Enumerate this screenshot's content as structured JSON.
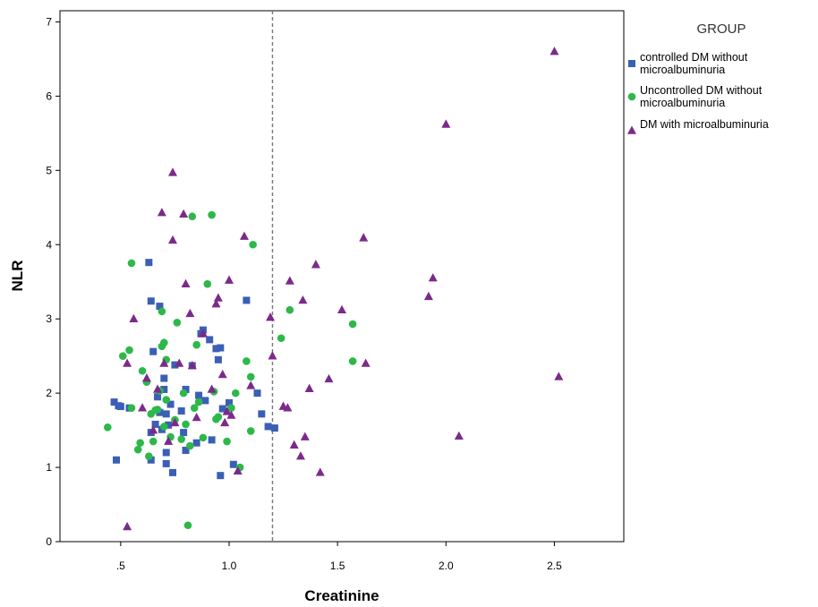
{
  "chart_data": {
    "type": "scatter",
    "xlabel": "Creatinine",
    "ylabel": "NLR",
    "xlim": [
      0.22,
      2.82
    ],
    "ylim": [
      0,
      7.15
    ],
    "x_ticks": [
      ".5",
      "1.0",
      "1.5",
      "2.0",
      "2.5"
    ],
    "y_ticks": [
      "0",
      "1",
      "2",
      "3",
      "4",
      "5",
      "6",
      "7"
    ],
    "reference_line": {
      "axis": "x",
      "value": 1.2,
      "style": "dashed"
    },
    "grid": false,
    "legend": {
      "title": "GROUP",
      "position": "right"
    },
    "series": [
      {
        "name": "controlled DM without microalbuminuria",
        "label_lines": [
          "controlled DM without",
          "microalbuminuria"
        ],
        "marker": "square",
        "color": "#3a5fb5",
        "points": [
          [
            0.47,
            1.88
          ],
          [
            0.48,
            1.1
          ],
          [
            0.49,
            1.83
          ],
          [
            0.5,
            1.82
          ],
          [
            0.54,
            1.8
          ],
          [
            0.63,
            3.76
          ],
          [
            0.64,
            3.24
          ],
          [
            0.64,
            1.47
          ],
          [
            0.64,
            1.1
          ],
          [
            0.65,
            2.56
          ],
          [
            0.66,
            1.58
          ],
          [
            0.67,
            1.95
          ],
          [
            0.68,
            3.17
          ],
          [
            0.68,
            1.74
          ],
          [
            0.69,
            1.51
          ],
          [
            0.7,
            2.2
          ],
          [
            0.7,
            2.05
          ],
          [
            0.71,
            1.05
          ],
          [
            0.71,
            1.2
          ],
          [
            0.71,
            1.72
          ],
          [
            0.72,
            1.57
          ],
          [
            0.73,
            1.85
          ],
          [
            0.74,
            0.93
          ],
          [
            0.75,
            2.38
          ],
          [
            0.78,
            1.76
          ],
          [
            0.79,
            1.47
          ],
          [
            0.8,
            1.23
          ],
          [
            0.8,
            2.05
          ],
          [
            0.83,
            2.37
          ],
          [
            0.85,
            1.33
          ],
          [
            0.86,
            1.97
          ],
          [
            0.87,
            2.8
          ],
          [
            0.88,
            2.85
          ],
          [
            0.89,
            1.9
          ],
          [
            0.91,
            2.72
          ],
          [
            0.92,
            1.37
          ],
          [
            0.94,
            2.6
          ],
          [
            0.95,
            2.45
          ],
          [
            0.96,
            2.61
          ],
          [
            0.96,
            0.89
          ],
          [
            0.97,
            1.79
          ],
          [
            1.0,
            1.87
          ],
          [
            1.02,
            1.04
          ],
          [
            1.08,
            3.25
          ],
          [
            1.13,
            2.0
          ],
          [
            1.15,
            1.72
          ],
          [
            1.18,
            1.55
          ],
          [
            1.21,
            1.53
          ]
        ]
      },
      {
        "name": "Uncontrolled DM without microalbuminuria",
        "label_lines": [
          "Uncontrolled DM without",
          "microalbuminuria"
        ],
        "marker": "circle",
        "color": "#2db84a",
        "points": [
          [
            0.44,
            1.54
          ],
          [
            0.51,
            2.5
          ],
          [
            0.54,
            2.58
          ],
          [
            0.55,
            3.75
          ],
          [
            0.55,
            1.8
          ],
          [
            0.58,
            1.24
          ],
          [
            0.59,
            1.33
          ],
          [
            0.6,
            2.3
          ],
          [
            0.62,
            2.15
          ],
          [
            0.63,
            1.15
          ],
          [
            0.64,
            1.72
          ],
          [
            0.65,
            1.35
          ],
          [
            0.66,
            1.77
          ],
          [
            0.67,
            1.78
          ],
          [
            0.68,
            2.03
          ],
          [
            0.69,
            2.63
          ],
          [
            0.69,
            3.1
          ],
          [
            0.7,
            2.68
          ],
          [
            0.7,
            1.55
          ],
          [
            0.71,
            1.91
          ],
          [
            0.71,
            2.45
          ],
          [
            0.73,
            1.41
          ],
          [
            0.75,
            1.64
          ],
          [
            0.76,
            2.95
          ],
          [
            0.78,
            1.38
          ],
          [
            0.79,
            2.0
          ],
          [
            0.8,
            1.58
          ],
          [
            0.81,
            0.22
          ],
          [
            0.82,
            1.29
          ],
          [
            0.83,
            4.38
          ],
          [
            0.84,
            1.8
          ],
          [
            0.85,
            2.65
          ],
          [
            0.86,
            1.88
          ],
          [
            0.88,
            1.4
          ],
          [
            0.9,
            3.47
          ],
          [
            0.92,
            4.4
          ],
          [
            0.93,
            2.02
          ],
          [
            0.94,
            1.65
          ],
          [
            0.95,
            1.68
          ],
          [
            0.99,
            1.35
          ],
          [
            1.01,
            1.8
          ],
          [
            1.03,
            2.0
          ],
          [
            1.05,
            1.0
          ],
          [
            1.08,
            2.43
          ],
          [
            1.1,
            1.49
          ],
          [
            1.1,
            2.22
          ],
          [
            1.11,
            4.0
          ],
          [
            1.24,
            2.74
          ],
          [
            1.28,
            3.12
          ],
          [
            1.57,
            2.93
          ],
          [
            1.57,
            2.43
          ]
        ]
      },
      {
        "name": "DM with microalbuminuria",
        "label_lines": [
          "DM with microalbuminuria"
        ],
        "marker": "triangle",
        "color": "#7b2a8a",
        "points": [
          [
            0.53,
            0.2
          ],
          [
            0.53,
            2.4
          ],
          [
            0.56,
            3.0
          ],
          [
            0.6,
            1.8
          ],
          [
            0.62,
            2.2
          ],
          [
            0.65,
            1.5
          ],
          [
            0.67,
            2.05
          ],
          [
            0.69,
            4.43
          ],
          [
            0.7,
            2.4
          ],
          [
            0.72,
            1.35
          ],
          [
            0.74,
            4.97
          ],
          [
            0.74,
            4.06
          ],
          [
            0.75,
            1.6
          ],
          [
            0.77,
            2.4
          ],
          [
            0.79,
            4.41
          ],
          [
            0.8,
            3.47
          ],
          [
            0.82,
            3.07
          ],
          [
            0.83,
            2.37
          ],
          [
            0.85,
            1.67
          ],
          [
            0.88,
            2.8
          ],
          [
            0.92,
            2.05
          ],
          [
            0.94,
            3.2
          ],
          [
            0.95,
            3.28
          ],
          [
            0.97,
            2.25
          ],
          [
            0.98,
            1.6
          ],
          [
            0.99,
            1.75
          ],
          [
            1.0,
            3.52
          ],
          [
            1.01,
            1.7
          ],
          [
            1.04,
            0.95
          ],
          [
            1.07,
            4.11
          ],
          [
            1.1,
            2.1
          ],
          [
            1.19,
            3.02
          ],
          [
            1.2,
            2.5
          ],
          [
            1.25,
            1.82
          ],
          [
            1.27,
            1.8
          ],
          [
            1.28,
            3.51
          ],
          [
            1.3,
            1.3
          ],
          [
            1.33,
            1.15
          ],
          [
            1.34,
            3.25
          ],
          [
            1.35,
            1.41
          ],
          [
            1.37,
            2.06
          ],
          [
            1.4,
            3.73
          ],
          [
            1.42,
            0.93
          ],
          [
            1.46,
            2.19
          ],
          [
            1.52,
            3.12
          ],
          [
            1.62,
            4.09
          ],
          [
            1.63,
            2.4
          ],
          [
            1.92,
            3.3
          ],
          [
            1.94,
            3.55
          ],
          [
            2.0,
            5.62
          ],
          [
            2.06,
            1.42
          ],
          [
            2.5,
            6.6
          ],
          [
            2.52,
            2.22
          ]
        ]
      }
    ]
  }
}
